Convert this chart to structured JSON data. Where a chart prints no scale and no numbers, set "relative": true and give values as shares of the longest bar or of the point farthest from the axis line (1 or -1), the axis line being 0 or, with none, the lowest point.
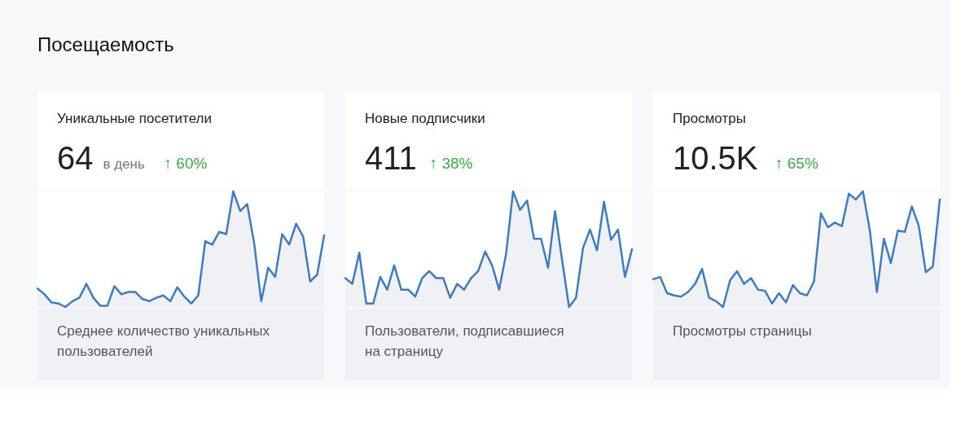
{
  "chart_data": [
    {
      "type": "line",
      "relative": true,
      "title": "Уникальные посетители",
      "categories": [
        null,
        null,
        null,
        null,
        null,
        null,
        null,
        null,
        null,
        null,
        null,
        null,
        null,
        null,
        null,
        null,
        null,
        null,
        null,
        null,
        null,
        null,
        null,
        null,
        null,
        null,
        null,
        null,
        null,
        null,
        null,
        null,
        null,
        null,
        null,
        null,
        null,
        null,
        null,
        null,
        null,
        null
      ],
      "series": [
        {
          "color": "#3d7cc0",
          "values": [
            0.16,
            0.11,
            0.04,
            0.03,
            0,
            0.05,
            0.08,
            0.2,
            0.08,
            0.01,
            0.01,
            0.18,
            0.11,
            0.13,
            0.13,
            0.07,
            0.05,
            0.08,
            0.1,
            0.05,
            0.17,
            0.09,
            0.03,
            0.1,
            0.57,
            0.54,
            0.65,
            0.63,
            1,
            0.83,
            0.89,
            0.55,
            0.05,
            0.34,
            0.26,
            0.63,
            0.54,
            0.72,
            0.61,
            0.22,
            0.28,
            0.62
          ]
        }
      ],
      "annotations": [
        "Посещаемость",
        "64",
        "в день",
        "↑ 60%",
        "Среднее количество уникальных пользователей"
      ]
    },
    {
      "type": "line",
      "relative": true,
      "title": "Новые подписчики",
      "categories": [
        null,
        null,
        null,
        null,
        null,
        null,
        null,
        null,
        null,
        null,
        null,
        null,
        null,
        null,
        null,
        null,
        null,
        null,
        null,
        null,
        null,
        null,
        null,
        null,
        null,
        null,
        null,
        null,
        null,
        null,
        null,
        null,
        null,
        null,
        null,
        null,
        null,
        null,
        null,
        null,
        null,
        null
      ],
      "series": [
        {
          "color": "#3d7cc0",
          "values": [
            0.25,
            0.2,
            0.47,
            0.03,
            0.03,
            0.26,
            0.15,
            0.36,
            0.15,
            0.15,
            0.09,
            0.25,
            0.31,
            0.25,
            0.25,
            0.08,
            0.2,
            0.15,
            0.25,
            0.31,
            0.48,
            0.36,
            0.15,
            0.46,
            1,
            0.84,
            0.92,
            0.59,
            0.59,
            0.34,
            0.83,
            0.41,
            0,
            0.08,
            0.51,
            0.67,
            0.49,
            0.91,
            0.58,
            0.67,
            0.26,
            0.5
          ]
        }
      ],
      "annotations": [
        "411",
        "↑ 38%",
        "Пользователи, подписавшиеся на страницу"
      ]
    },
    {
      "type": "line",
      "relative": true,
      "title": "Просмотры",
      "categories": [
        null,
        null,
        null,
        null,
        null,
        null,
        null,
        null,
        null,
        null,
        null,
        null,
        null,
        null,
        null,
        null,
        null,
        null,
        null,
        null,
        null,
        null,
        null,
        null,
        null,
        null,
        null,
        null,
        null,
        null,
        null,
        null,
        null,
        null,
        null,
        null,
        null,
        null,
        null,
        null,
        null,
        null
      ],
      "series": [
        {
          "color": "#3d7cc0",
          "values": [
            0.24,
            0.26,
            0.12,
            0.1,
            0.09,
            0.13,
            0.2,
            0.33,
            0.08,
            0.05,
            0,
            0.23,
            0.31,
            0.2,
            0.25,
            0.15,
            0.14,
            0.03,
            0.12,
            0.04,
            0.19,
            0.12,
            0.1,
            0.22,
            0.81,
            0.69,
            0.73,
            0.7,
            0.98,
            0.93,
            1,
            0.66,
            0.13,
            0.59,
            0.38,
            0.66,
            0.65,
            0.87,
            0.7,
            0.3,
            0.35,
            0.93
          ]
        }
      ],
      "annotations": [
        "10.5K",
        "↑ 65%",
        "Просмотры страницы"
      ]
    }
  ]
}
